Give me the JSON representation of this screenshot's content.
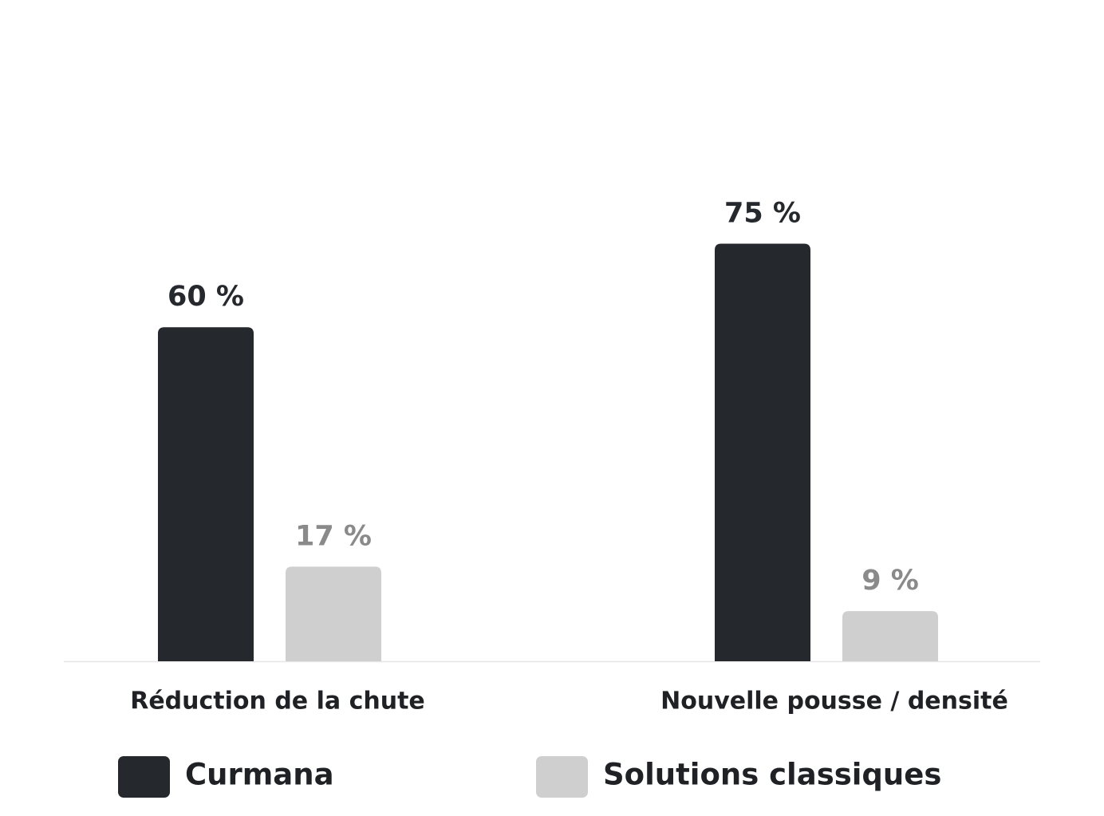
{
  "chart_data": {
    "type": "bar",
    "categories": [
      "Réduction de la chute",
      "Nouvelle pousse / densité"
    ],
    "series": [
      {
        "name": "Curmana",
        "color": "#25282d",
        "values": [
          60,
          75
        ],
        "value_labels": [
          "60 %",
          "75 %"
        ]
      },
      {
        "name": "Solutions classiques",
        "color": "#cfcfcf",
        "values": [
          17,
          9
        ],
        "value_labels": [
          "17 %",
          "9 %"
        ]
      }
    ]
  }
}
